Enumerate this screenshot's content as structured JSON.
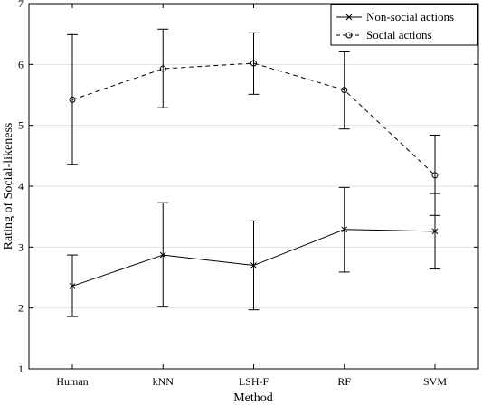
{
  "chart_data": {
    "type": "line",
    "xlabel": "Method",
    "ylabel": "Rating of Social-likeness",
    "categories": [
      "Human",
      "kNN",
      "LSH-F",
      "RF",
      "SVM"
    ],
    "ylim": [
      1,
      7
    ],
    "yticks": [
      "1",
      "2",
      "3",
      "4",
      "5",
      "6",
      "7"
    ],
    "grid": "horizontal",
    "legend_position": "top-right",
    "series": [
      {
        "name": "Non-social actions",
        "style": "solid",
        "marker": "x",
        "color": "#000000",
        "values": [
          2.36,
          2.87,
          2.7,
          3.29,
          3.26
        ],
        "err_low": [
          1.86,
          2.02,
          1.97,
          2.59,
          2.64
        ],
        "err_high": [
          2.87,
          3.73,
          3.43,
          3.98,
          3.88
        ]
      },
      {
        "name": "Social actions",
        "style": "dashed",
        "marker": "o",
        "color": "#000000",
        "values": [
          5.42,
          5.93,
          6.02,
          5.58,
          4.18
        ],
        "err_low": [
          4.36,
          5.29,
          5.51,
          4.94,
          3.52
        ],
        "err_high": [
          6.49,
          6.58,
          6.52,
          6.22,
          4.84
        ]
      }
    ]
  }
}
